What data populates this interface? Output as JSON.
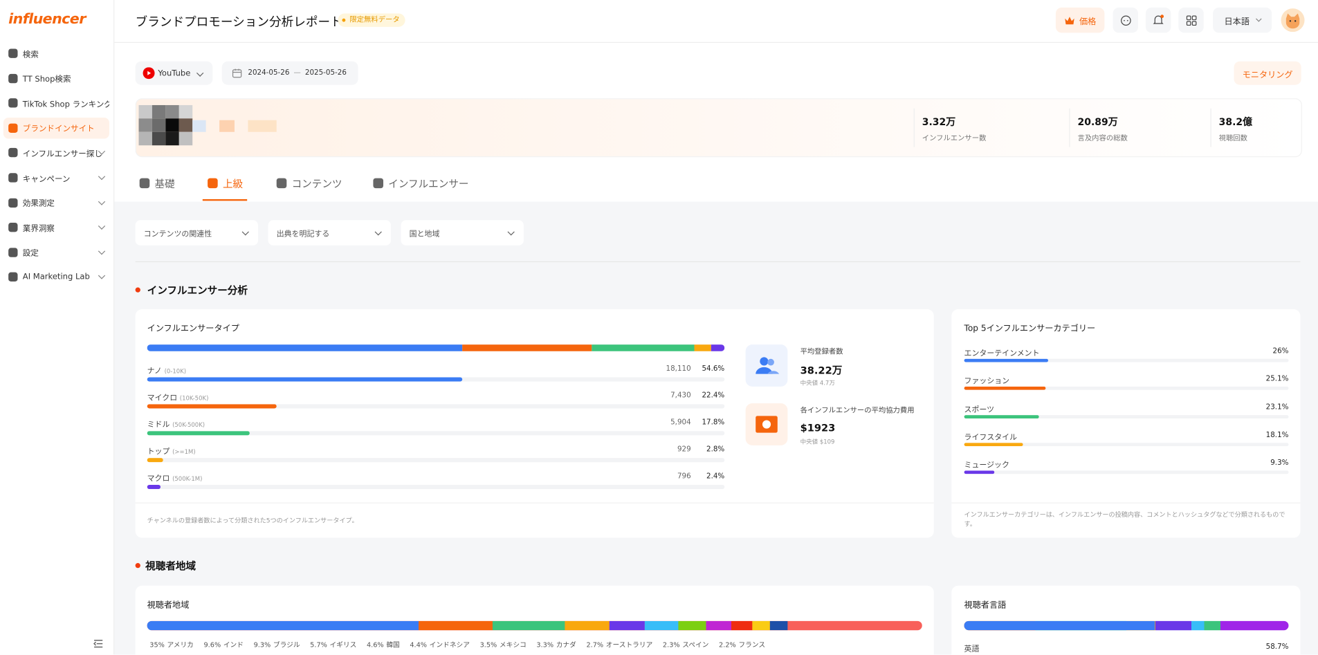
{
  "sidebar": {
    "brand": "influencer",
    "items": [
      "検索",
      "TT Shop検索",
      "TikTok Shop ランキング",
      "ブランドインサイト",
      "インフルエンサー探し",
      "キャンペーン",
      "効果測定",
      "業界洞察",
      "設定",
      "AI Marketing Lab"
    ],
    "active": 3
  },
  "header": {
    "title": "ブランドプロモーション分析レポート",
    "badge": "限定無料データ",
    "price_button": "価格",
    "language": "日本語"
  },
  "filters": {
    "platform": "YouTube",
    "date_from": "2024-05-26",
    "date_separator": "—",
    "date_to": "2025-05-26",
    "monitor_button": "モニタリング"
  },
  "stats": [
    {
      "value": "3.32万",
      "label": "インフルエンサー数"
    },
    {
      "value": "20.89万",
      "label": "言及内容の総数"
    },
    {
      "value": "38.2億",
      "label": "視聴回数"
    }
  ],
  "tabs": {
    "items": [
      "基礎",
      "上級",
      "コンテンツ",
      "インフルエンサー"
    ],
    "active": 1
  },
  "dropdowns": [
    "コンテンツの関連性",
    "出典を明記する",
    "国と地域"
  ],
  "influencer_section": {
    "title": "インフルエンサー分析",
    "type_card": {
      "title": "インフルエンサータイプ",
      "rows": [
        {
          "name": "ナノ",
          "range": "(0-10K)",
          "count": "18,110",
          "percent": 54.6,
          "percent_label": "54.6%",
          "color": "#3b7cf4"
        },
        {
          "name": "マイクロ",
          "range": "(10K-50K)",
          "count": "7,430",
          "percent": 22.4,
          "percent_label": "22.4%",
          "color": "#f5650d"
        },
        {
          "name": "ミドル",
          "range": "(50K-500K)",
          "count": "5,904",
          "percent": 17.8,
          "percent_label": "17.8%",
          "color": "#3cc47c"
        },
        {
          "name": "トップ",
          "range": "(>=1M)",
          "count": "929",
          "percent": 2.8,
          "percent_label": "2.8%",
          "color": "#f9a80f"
        },
        {
          "name": "マクロ",
          "range": "(500K-1M)",
          "count": "796",
          "percent": 2.4,
          "percent_label": "2.4%",
          "color": "#6a38e8"
        }
      ],
      "note": "チャンネルの登録者数によって分類された5つのインフルエンサータイプ。"
    },
    "metrics": [
      {
        "label": "平均登録者数",
        "value": "38.22万",
        "median": "中央値 4.7万"
      },
      {
        "label": "各インフルエンサーの平均協力費用",
        "value": "$1923",
        "median": "中央値 $109"
      }
    ],
    "category_card": {
      "title": "Top 5インフルエンサーカテゴリー",
      "rows": [
        {
          "name": "エンターテインメント",
          "percent": 26,
          "percent_label": "26%",
          "color": "#3b7cf4"
        },
        {
          "name": "ファッション",
          "percent": 25.1,
          "percent_label": "25.1%",
          "color": "#f5650d"
        },
        {
          "name": "スポーツ",
          "percent": 23.1,
          "percent_label": "23.1%",
          "color": "#3cc47c"
        },
        {
          "name": "ライフスタイル",
          "percent": 18.1,
          "percent_label": "18.1%",
          "color": "#f9a80f"
        },
        {
          "name": "ミュージック",
          "percent": 9.3,
          "percent_label": "9.3%",
          "color": "#6a38e8"
        }
      ],
      "note": "インフルエンサーカテゴリーは、インフルエンサーの投稿内容、コメントとハッシュタグなどで分類されるものです。"
    }
  },
  "audience_section": {
    "title": "視聴者地域",
    "region_card": {
      "title": "視聴者地域",
      "segments": [
        {
          "name": "アメリカ",
          "percent": 35,
          "percent_label": "35%",
          "color": "#3b7cf4"
        },
        {
          "name": "インド",
          "percent": 9.6,
          "percent_label": "9.6%",
          "color": "#f5650d"
        },
        {
          "name": "ブラジル",
          "percent": 9.3,
          "percent_label": "9.3%",
          "color": "#3cc47c"
        },
        {
          "name": "イギリス",
          "percent": 5.7,
          "percent_label": "5.7%",
          "color": "#f9a80f"
        },
        {
          "name": "韓国",
          "percent": 4.6,
          "percent_label": "4.6%",
          "color": "#6a38e8"
        },
        {
          "name": "インドネシア",
          "percent": 4.4,
          "percent_label": "4.4%",
          "color": "#38bdf8"
        },
        {
          "name": "メキシコ",
          "percent": 3.5,
          "percent_label": "3.5%",
          "color": "#7ccf12"
        },
        {
          "name": "カナダ",
          "percent": 3.3,
          "percent_label": "3.3%",
          "color": "#c026d3"
        },
        {
          "name": "オーストラリア",
          "percent": 2.7,
          "percent_label": "2.7%",
          "color": "#ef2d10"
        },
        {
          "name": "スペイン",
          "percent": 2.3,
          "percent_label": "2.3%",
          "color": "#facc15"
        },
        {
          "name": "フランス",
          "percent": 2.2,
          "percent_label": "2.2%",
          "color": "#1e4fa8"
        }
      ]
    },
    "language_card": {
      "title": "視聴者言語",
      "segments": [
        {
          "name": "英語",
          "percent": 58.7,
          "percent_label": "58.7%",
          "color": "#3b7cf4"
        }
      ]
    }
  }
}
